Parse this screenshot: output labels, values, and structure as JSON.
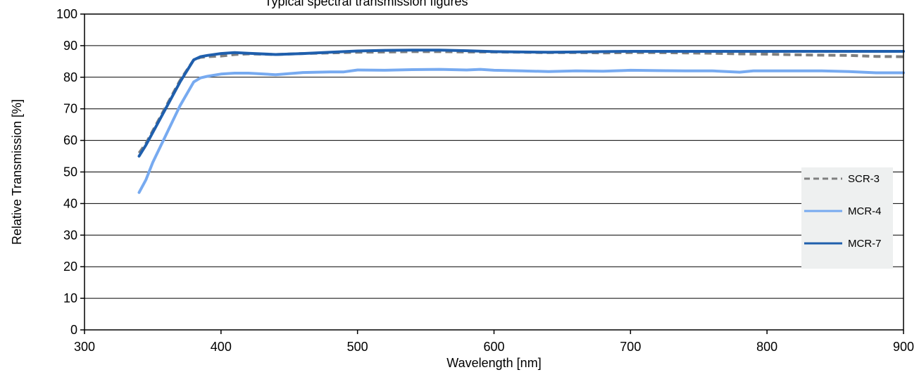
{
  "chart_data": {
    "type": "line",
    "title": "Typical spectral transmission figures",
    "xlabel": "Wavelength [nm]",
    "ylabel": "Relative Transmission [%]",
    "xlim": [
      300,
      900
    ],
    "ylim": [
      0,
      100
    ],
    "xticks": [
      300,
      400,
      500,
      600,
      700,
      800,
      900
    ],
    "yticks": [
      0,
      10,
      20,
      30,
      40,
      50,
      60,
      70,
      80,
      90,
      100
    ],
    "grid": "horizontal",
    "legend_position": "right",
    "series": [
      {
        "name": "SCR-3",
        "color": "#7f7f7f",
        "dash": "dashed",
        "x": [
          340,
          345,
          350,
          360,
          370,
          380,
          385,
          390,
          400,
          410,
          420,
          440,
          460,
          480,
          500,
          520,
          540,
          560,
          580,
          600,
          620,
          640,
          660,
          680,
          700,
          720,
          740,
          760,
          780,
          800,
          820,
          840,
          860,
          880,
          900
        ],
        "y": [
          56,
          59,
          63,
          71,
          79,
          85.5,
          86.3,
          86.5,
          86.7,
          87.2,
          87.4,
          87.2,
          87.5,
          87.7,
          87.9,
          88,
          88.1,
          88.1,
          88,
          88,
          87.9,
          87.8,
          87.8,
          87.7,
          87.8,
          87.8,
          87.7,
          87.6,
          87.4,
          87.3,
          87.1,
          87,
          86.9,
          86.6,
          86.5
        ]
      },
      {
        "name": "MCR-4",
        "color": "#77aaf0",
        "dash": "solid",
        "x": [
          340,
          345,
          350,
          360,
          370,
          380,
          385,
          390,
          400,
          410,
          420,
          440,
          460,
          480,
          490,
          500,
          520,
          540,
          560,
          580,
          590,
          600,
          620,
          640,
          660,
          680,
          700,
          720,
          740,
          760,
          780,
          790,
          800,
          820,
          840,
          860,
          880,
          900
        ],
        "y": [
          43.5,
          47.5,
          53,
          62,
          71,
          78.5,
          79.8,
          80.3,
          81,
          81.3,
          81.3,
          80.8,
          81.5,
          81.7,
          81.7,
          82.3,
          82.2,
          82.4,
          82.5,
          82.3,
          82.5,
          82.2,
          82,
          81.8,
          82,
          81.9,
          82.2,
          82.1,
          82,
          82,
          81.6,
          82,
          82,
          82,
          82,
          81.8,
          81.4,
          81.4
        ]
      },
      {
        "name": "MCR-7",
        "color": "#1f5fad",
        "dash": "solid",
        "x": [
          340,
          345,
          350,
          360,
          370,
          380,
          385,
          390,
          400,
          410,
          420,
          440,
          460,
          480,
          500,
          520,
          540,
          560,
          580,
          600,
          620,
          640,
          660,
          680,
          700,
          720,
          740,
          760,
          780,
          800,
          820,
          840,
          860,
          880,
          900
        ],
        "y": [
          55,
          58.5,
          62.5,
          70.5,
          78.5,
          85.5,
          86.5,
          86.9,
          87.5,
          87.8,
          87.6,
          87.2,
          87.5,
          87.9,
          88.3,
          88.5,
          88.6,
          88.6,
          88.4,
          88.1,
          88,
          87.9,
          88,
          88.1,
          88.2,
          88.2,
          88.2,
          88.2,
          88.2,
          88.2,
          88.2,
          88.2,
          88.2,
          88.2,
          88.2
        ]
      }
    ]
  }
}
